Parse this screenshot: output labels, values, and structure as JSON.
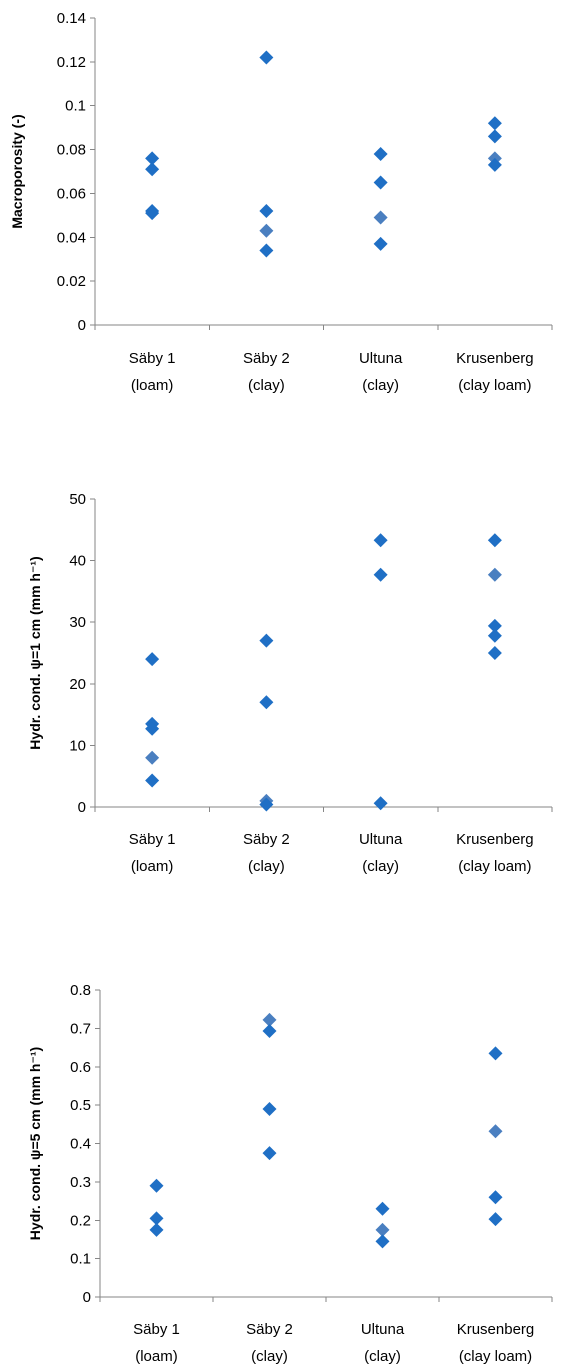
{
  "chart_data": [
    {
      "type": "scatter",
      "title": "",
      "xlabel": "",
      "ylabel": "Macroporosity (-)",
      "ylim": [
        0,
        0.14
      ],
      "yticks": [
        "0",
        "0.02",
        "0.04",
        "0.06",
        "0.08",
        "0.1",
        "0.12",
        "0.14"
      ],
      "categories": [
        "Säby 1",
        "Säby 2",
        "Ultuna",
        "Krusenberg"
      ],
      "category_sublabels": [
        "(loam)",
        "(clay)",
        "(clay)",
        "(clay loam)"
      ],
      "grid": false,
      "legend": "none",
      "marker_color": "#1f6fc5",
      "highlight_color": "#4a7fc0",
      "points": [
        {
          "cat": 0,
          "y": 0.076
        },
        {
          "cat": 0,
          "y": 0.071
        },
        {
          "cat": 0,
          "y": 0.052
        },
        {
          "cat": 0,
          "y": 0.051
        },
        {
          "cat": 1,
          "y": 0.122
        },
        {
          "cat": 1,
          "y": 0.052
        },
        {
          "cat": 1,
          "y": 0.043,
          "highlight": true
        },
        {
          "cat": 1,
          "y": 0.034
        },
        {
          "cat": 2,
          "y": 0.078
        },
        {
          "cat": 2,
          "y": 0.065
        },
        {
          "cat": 2,
          "y": 0.049,
          "highlight": true
        },
        {
          "cat": 2,
          "y": 0.037
        },
        {
          "cat": 3,
          "y": 0.092
        },
        {
          "cat": 3,
          "y": 0.086
        },
        {
          "cat": 3,
          "y": 0.076,
          "highlight": true
        },
        {
          "cat": 3,
          "y": 0.073
        }
      ]
    },
    {
      "type": "scatter",
      "title": "",
      "xlabel": "",
      "ylabel": "Hydr. cond. ψ=1 cm (mm h⁻¹)",
      "ylim": [
        0,
        50
      ],
      "yticks": [
        "0",
        "10",
        "20",
        "30",
        "40",
        "50"
      ],
      "categories": [
        "Säby 1",
        "Säby 2",
        "Ultuna",
        "Krusenberg"
      ],
      "category_sublabels": [
        "(loam)",
        "(clay)",
        "(clay)",
        "(clay loam)"
      ],
      "grid": false,
      "legend": "none",
      "marker_color": "#1f6fc5",
      "highlight_color": "#4a7fc0",
      "points": [
        {
          "cat": 0,
          "y": 24.0
        },
        {
          "cat": 0,
          "y": 13.5
        },
        {
          "cat": 0,
          "y": 12.7
        },
        {
          "cat": 0,
          "y": 8.0,
          "highlight": true
        },
        {
          "cat": 0,
          "y": 4.3
        },
        {
          "cat": 1,
          "y": 27.0
        },
        {
          "cat": 1,
          "y": 17.0
        },
        {
          "cat": 1,
          "y": 1.0,
          "highlight": true
        },
        {
          "cat": 1,
          "y": 0.4
        },
        {
          "cat": 2,
          "y": 43.3
        },
        {
          "cat": 2,
          "y": 37.7
        },
        {
          "cat": 2,
          "y": 0.6
        },
        {
          "cat": 3,
          "y": 43.3
        },
        {
          "cat": 3,
          "y": 37.7,
          "highlight": true
        },
        {
          "cat": 3,
          "y": 29.4
        },
        {
          "cat": 3,
          "y": 27.8
        },
        {
          "cat": 3,
          "y": 25.0
        }
      ]
    },
    {
      "type": "scatter",
      "title": "",
      "xlabel": "",
      "ylabel": "Hydr. cond. ψ=5 cm (mm h⁻¹)",
      "ylim": [
        0,
        0.8
      ],
      "yticks": [
        "0",
        "0.1",
        "0.2",
        "0.3",
        "0.4",
        "0.5",
        "0.6",
        "0.7",
        "0.8"
      ],
      "categories": [
        "Säby 1",
        "Säby 2",
        "Ultuna",
        "Krusenberg"
      ],
      "category_sublabels": [
        "(loam)",
        "(clay)",
        "(clay)",
        "(clay loam)"
      ],
      "grid": false,
      "legend": "none",
      "marker_color": "#1f6fc5",
      "highlight_color": "#4a7fc0",
      "points": [
        {
          "cat": 0,
          "y": 0.29
        },
        {
          "cat": 0,
          "y": 0.205
        },
        {
          "cat": 0,
          "y": 0.175
        },
        {
          "cat": 1,
          "y": 0.722,
          "highlight": true
        },
        {
          "cat": 1,
          "y": 0.693
        },
        {
          "cat": 1,
          "y": 0.49
        },
        {
          "cat": 1,
          "y": 0.375
        },
        {
          "cat": 2,
          "y": 0.23
        },
        {
          "cat": 2,
          "y": 0.175,
          "highlight": true
        },
        {
          "cat": 2,
          "y": 0.145
        },
        {
          "cat": 3,
          "y": 0.635
        },
        {
          "cat": 3,
          "y": 0.432,
          "highlight": true
        },
        {
          "cat": 3,
          "y": 0.26
        },
        {
          "cat": 3,
          "y": 0.203
        }
      ]
    }
  ]
}
